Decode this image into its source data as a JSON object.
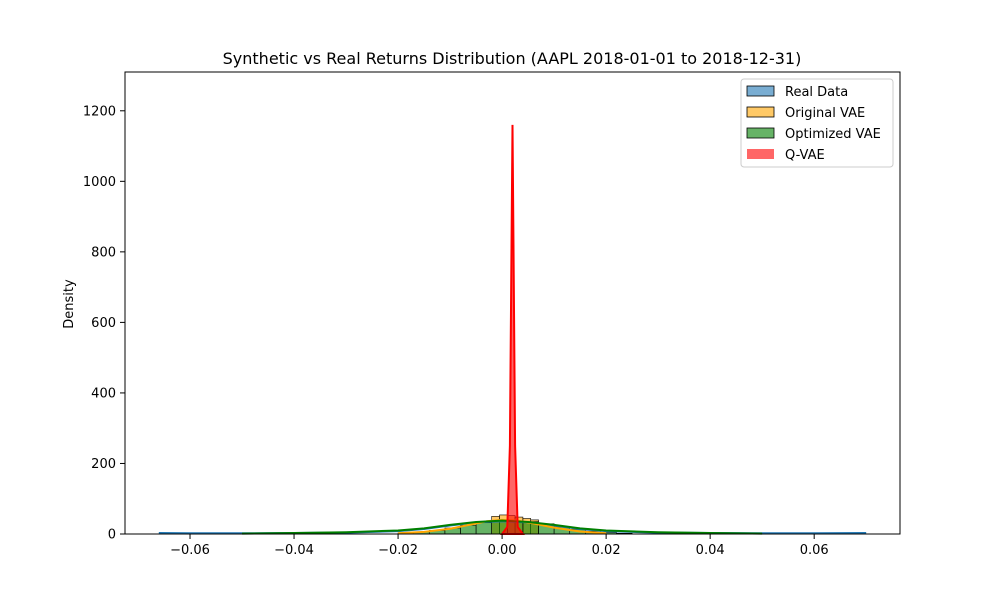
{
  "chart_data": {
    "type": "histogram-kde",
    "title": "Synthetic vs Real Returns Distribution (AAPL 2018-01-01 to 2018-12-31)",
    "xlabel": "",
    "ylabel": "Density",
    "xlim": [
      -0.0725,
      0.0765
    ],
    "ylim": [
      0,
      1310
    ],
    "x_ticks": [
      -0.06,
      -0.04,
      -0.02,
      0.0,
      0.02,
      0.04,
      0.06
    ],
    "x_tick_labels": [
      "−0.06",
      "−0.04",
      "−0.02",
      "0.00",
      "0.02",
      "0.04",
      "0.06"
    ],
    "y_ticks": [
      0,
      200,
      400,
      600,
      800,
      1000,
      1200
    ],
    "y_tick_labels": [
      "0",
      "200",
      "400",
      "600",
      "800",
      "1000",
      "1200"
    ],
    "grid": false,
    "legend_position": "top-right",
    "series": [
      {
        "name": "Real Data",
        "color": "#1f77b4",
        "kde_x": [
          -0.066,
          -0.06,
          -0.05,
          -0.04,
          -0.03,
          -0.02,
          -0.015,
          -0.01,
          -0.005,
          0.0,
          0.005,
          0.01,
          0.015,
          0.02,
          0.03,
          0.04,
          0.05,
          0.06,
          0.07
        ],
        "kde_y": [
          3,
          2,
          2,
          3,
          4,
          8,
          14,
          24,
          33,
          36,
          33,
          24,
          14,
          8,
          4,
          3,
          2,
          2,
          3
        ]
      },
      {
        "name": "Original VAE",
        "color": "#ffa500",
        "hist_bins": [
          -0.002,
          -0.0005,
          0.001,
          0.0025,
          0.004,
          0.0055,
          0.007
        ],
        "hist_values": [
          50,
          54,
          52,
          48,
          44,
          40
        ],
        "kde_x": [
          -0.02,
          -0.015,
          -0.01,
          -0.006,
          -0.003,
          0.0,
          0.003,
          0.006,
          0.01,
          0.015,
          0.02
        ],
        "kde_y": [
          2,
          6,
          15,
          27,
          36,
          40,
          38,
          30,
          18,
          7,
          2
        ]
      },
      {
        "name": "Optimized VAE",
        "color": "#008000",
        "hist_bins": [
          -0.02,
          -0.017,
          -0.014,
          -0.011,
          -0.008,
          -0.005,
          -0.002,
          0.001,
          0.004,
          0.007,
          0.01,
          0.013,
          0.016,
          0.019,
          0.022,
          0.025
        ],
        "hist_values": [
          3,
          6,
          10,
          17,
          25,
          32,
          36,
          37,
          35,
          29,
          20,
          13,
          8,
          4,
          2
        ],
        "kde_x": [
          -0.05,
          -0.04,
          -0.03,
          -0.02,
          -0.015,
          -0.01,
          -0.005,
          0.0,
          0.005,
          0.01,
          0.015,
          0.02,
          0.03,
          0.04,
          0.05
        ],
        "kde_y": [
          1,
          3,
          5,
          10,
          16,
          26,
          34,
          38,
          34,
          26,
          16,
          10,
          5,
          3,
          1
        ]
      },
      {
        "name": "Q-VAE",
        "color": "#ff0000",
        "kde_x": [
          0.0,
          0.001,
          0.0015,
          0.0018,
          0.002,
          0.0022,
          0.0025,
          0.003,
          0.004
        ],
        "kde_y": [
          0,
          20,
          250,
          800,
          1160,
          800,
          250,
          20,
          0
        ]
      }
    ]
  }
}
